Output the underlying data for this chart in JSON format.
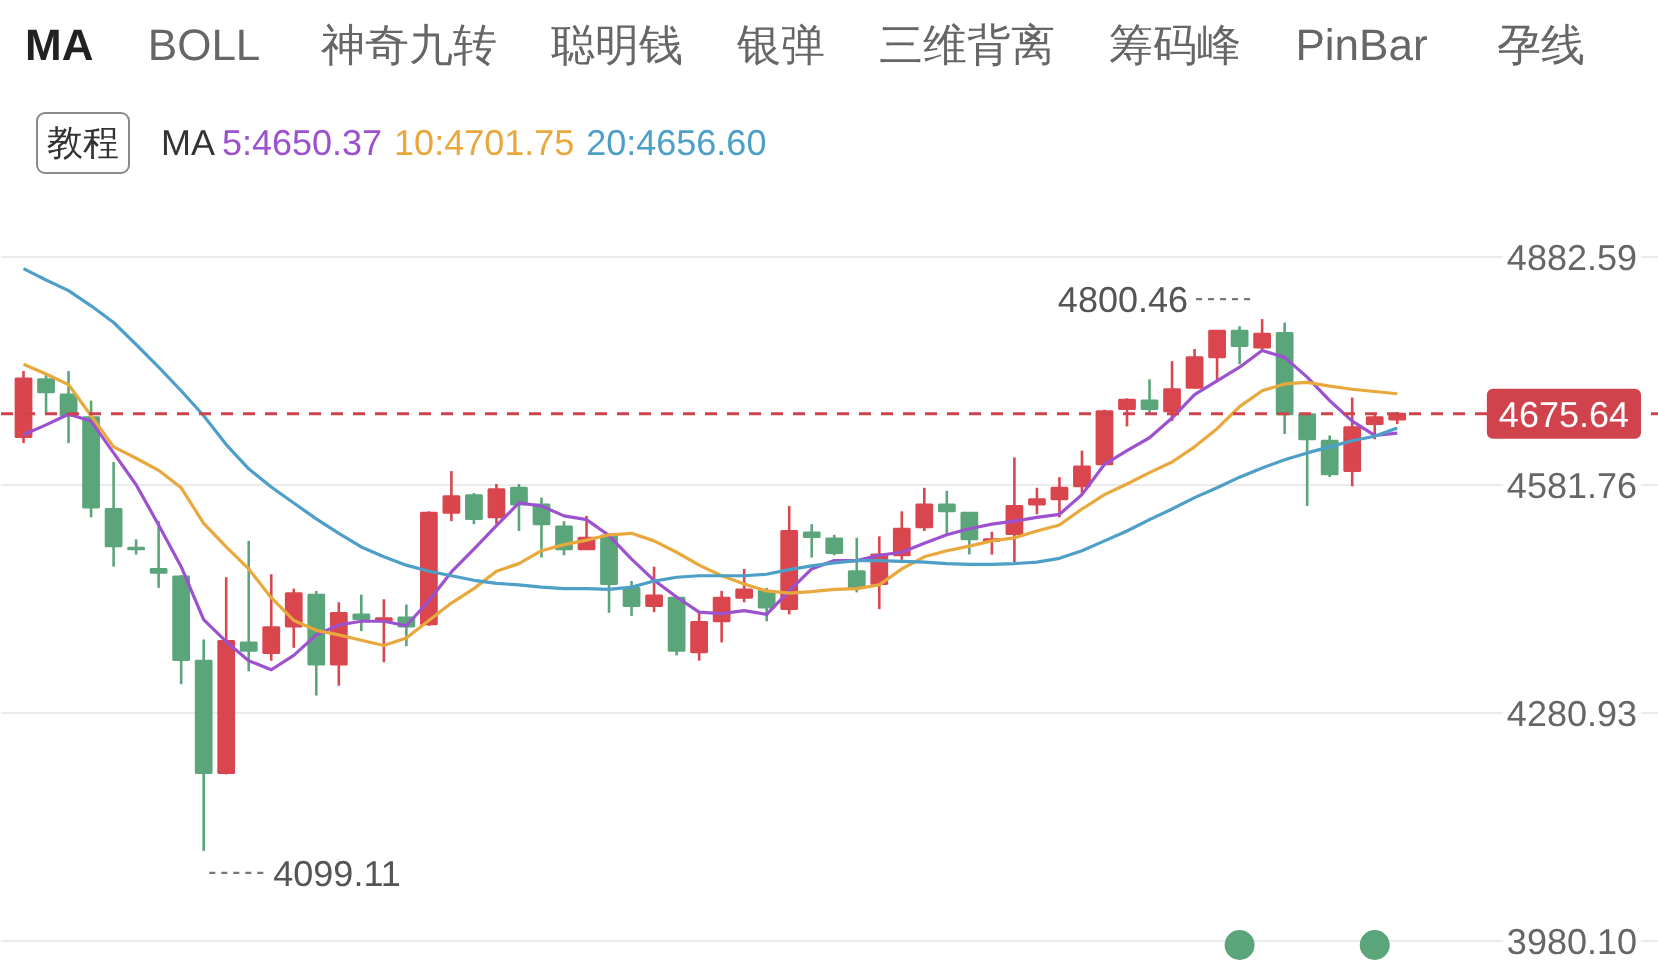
{
  "chart_data": {
    "type": "candlestick",
    "categories": [
      null,
      null,
      null,
      null,
      null,
      null,
      null,
      null,
      null,
      null,
      null,
      null,
      null,
      null,
      null,
      null,
      null,
      null,
      null,
      null,
      null,
      null,
      null,
      null,
      null,
      null,
      null,
      null,
      null,
      null,
      null,
      null,
      null,
      null,
      null,
      null,
      null,
      null,
      null,
      null,
      null,
      null,
      null,
      null,
      null,
      null,
      null,
      null,
      null,
      null,
      null,
      null,
      null,
      null,
      null,
      null,
      null,
      null,
      null,
      null,
      null,
      null
    ],
    "ohlc": [
      [
        4645,
        4732,
        4637,
        4722
      ],
      [
        4721,
        4728,
        4675,
        4704
      ],
      [
        4701,
        4732,
        4637,
        4673
      ],
      [
        4671,
        4693,
        4539,
        4552
      ],
      [
        4550,
        4612,
        4474,
        4501
      ],
      [
        4499,
        4510,
        4490,
        4497
      ],
      [
        4471,
        4534,
        4446,
        4466
      ],
      [
        4461,
        4463,
        4319,
        4351
      ],
      [
        4350,
        4378,
        4099.11,
        4202
      ],
      [
        4202,
        4460,
        4200,
        4376
      ],
      [
        4374,
        4508,
        4336,
        4363
      ],
      [
        4360,
        4464,
        4350,
        4394
      ],
      [
        4395,
        4445,
        4367,
        4439
      ],
      [
        4437,
        4442,
        4304,
        4345
      ],
      [
        4345,
        4427,
        4317,
        4413
      ],
      [
        4411,
        4437,
        4389,
        4405
      ],
      [
        4402,
        4431,
        4348,
        4406
      ],
      [
        4407,
        4424,
        4369,
        4395
      ],
      [
        4398,
        4547,
        4396,
        4545
      ],
      [
        4545,
        4600,
        4534,
        4567
      ],
      [
        4568,
        4571,
        4530,
        4537
      ],
      [
        4539,
        4583,
        4530,
        4576
      ],
      [
        4578,
        4583,
        4521,
        4556
      ],
      [
        4556,
        4565,
        4486,
        4530
      ],
      [
        4527,
        4534,
        4489,
        4497
      ],
      [
        4497,
        4541,
        4496,
        4512
      ],
      [
        4515,
        4516,
        4413,
        4451
      ],
      [
        4446,
        4455,
        4409,
        4422
      ],
      [
        4422,
        4474,
        4414,
        4436
      ],
      [
        4433,
        4434,
        4357,
        4363
      ],
      [
        4361,
        4413,
        4350,
        4401
      ],
      [
        4402,
        4442,
        4374,
        4433
      ],
      [
        4433,
        4471,
        4427,
        4444
      ],
      [
        4442,
        4446,
        4402,
        4420
      ],
      [
        4418,
        4554,
        4411,
        4521
      ],
      [
        4519,
        4530,
        4486,
        4513
      ],
      [
        4511,
        4516,
        4489,
        4492
      ],
      [
        4468,
        4512,
        4440,
        4446
      ],
      [
        4451,
        4514,
        4418,
        4490
      ],
      [
        4489,
        4547,
        4483,
        4524
      ],
      [
        4526,
        4578,
        4521,
        4556
      ],
      [
        4556,
        4574,
        4515,
        4547
      ],
      [
        4545,
        4546,
        4490,
        4510
      ],
      [
        4508,
        4520,
        4490,
        4510
      ],
      [
        4517,
        4618,
        4480,
        4554
      ],
      [
        4556,
        4578,
        4543,
        4563
      ],
      [
        4563,
        4592,
        4539,
        4578
      ],
      [
        4580,
        4627,
        4569,
        4606
      ],
      [
        4609,
        4681,
        4607,
        4679
      ],
      [
        4682,
        4696,
        4659,
        4694
      ],
      [
        4693,
        4721,
        4675,
        4682
      ],
      [
        4679,
        4745,
        4666,
        4708
      ],
      [
        4710,
        4761,
        4709,
        4750
      ],
      [
        4750,
        4786,
        4719,
        4785
      ],
      [
        4785,
        4791,
        4741,
        4765
      ],
      [
        4763,
        4800.46,
        4759,
        4781
      ],
      [
        4782,
        4796,
        4649,
        4675
      ],
      [
        4675,
        4676,
        4554,
        4642
      ],
      [
        4640,
        4647,
        4592,
        4596
      ],
      [
        4600,
        4697,
        4580,
        4658
      ],
      [
        4662,
        4677,
        4642,
        4671
      ],
      [
        4668,
        4678,
        4662,
        4675.64
      ]
    ],
    "colors": [
      "#d9464e",
      "#5ba57a",
      "#5ba57a",
      "#5ba57a",
      "#5ba57a",
      "#5ba57a",
      "#5ba57a",
      "#5ba57a",
      "#5ba57a",
      "#d9464e",
      "#5ba57a",
      "#d9464e",
      "#d9464e",
      "#5ba57a",
      "#d9464e",
      "#5ba57a",
      "#d9464e",
      "#5ba57a",
      "#d9464e",
      "#d9464e",
      "#5ba57a",
      "#d9464e",
      "#5ba57a",
      "#5ba57a",
      "#5ba57a",
      "#d9464e",
      "#5ba57a",
      "#5ba57a",
      "#d9464e",
      "#5ba57a",
      "#d9464e",
      "#d9464e",
      "#d9464e",
      "#5ba57a",
      "#d9464e",
      "#5ba57a",
      "#5ba57a",
      "#5ba57a",
      "#d9464e",
      "#d9464e",
      "#d9464e",
      "#5ba57a",
      "#5ba57a",
      "#d9464e",
      "#d9464e",
      "#d9464e",
      "#d9464e",
      "#d9464e",
      "#d9464e",
      "#d9464e",
      "#5ba57a",
      "#d9464e",
      "#d9464e",
      "#d9464e",
      "#5ba57a",
      "#d9464e",
      "#5ba57a",
      "#5ba57a",
      "#5ba57a",
      "#d9464e",
      "#d9464e",
      "#d9464e"
    ],
    "series": [
      {
        "name": "5:4650.37",
        "type": "line",
        "color": "#9c52cf",
        "values": [
          4648,
          4661,
          4675,
          4666,
          4624,
          4582,
          4529,
          4474,
          4404,
          4375,
          4350,
          4338,
          4357,
          4384,
          4397,
          4402,
          4402,
          4396,
          4429,
          4467,
          4497,
          4528,
          4558,
          4554,
          4541,
          4536,
          4515,
          4484,
          4456,
          4434,
          4414,
          4412,
          4416,
          4411,
          4442,
          4471,
          4482,
          4482,
          4489,
          4493,
          4505,
          4516,
          4524,
          4530,
          4534,
          4539,
          4543,
          4569,
          4609,
          4627,
          4644,
          4670,
          4701,
          4719,
          4737,
          4759,
          4750,
          4724,
          4693,
          4666,
          4647,
          4650
        ]
      },
      {
        "name": "10:4701.75",
        "type": "line",
        "color": "#e8a83c",
        "values": [
          4741,
          4728,
          4714,
          4673,
          4632,
          4617,
          4601,
          4578,
          4531,
          4500,
          4471,
          4433,
          4403,
          4390,
          4384,
          4377,
          4370,
          4380,
          4403,
          4426,
          4445,
          4468,
          4478,
          4495,
          4503,
          4509,
          4516,
          4518,
          4508,
          4493,
          4476,
          4462,
          4451,
          4442,
          4439,
          4441,
          4444,
          4445,
          4450,
          4471,
          4487,
          4495,
          4501,
          4508,
          4512,
          4521,
          4529,
          4550,
          4569,
          4583,
          4598,
          4612,
          4632,
          4656,
          4685,
          4706,
          4715,
          4717,
          4712,
          4708,
          4705,
          4702
        ]
      },
      {
        "name": "20:4656.60",
        "type": "line",
        "color": "#4d9fc8",
        "values": [
          4867,
          4852,
          4838,
          4818,
          4796,
          4767,
          4737,
          4706,
          4673,
          4635,
          4603,
          4579,
          4558,
          4537,
          4518,
          4500,
          4487,
          4476,
          4468,
          4462,
          4456,
          4452,
          4450,
          4447,
          4445,
          4445,
          4444,
          4447,
          4455,
          4460,
          4462,
          4462,
          4462,
          4464,
          4470,
          4475,
          4479,
          4482,
          4482,
          4481,
          4480,
          4478,
          4477,
          4477,
          4478,
          4480,
          4485,
          4495,
          4508,
          4521,
          4536,
          4550,
          4565,
          4578,
          4592,
          4604,
          4615,
          4624,
          4632,
          4640,
          4646,
          4657
        ]
      },
      {
        "type": "scatter",
        "color": "#5ba57a",
        "marker": "circle",
        "values": [
          null,
          null,
          null,
          null,
          null,
          null,
          null,
          null,
          null,
          null,
          null,
          null,
          null,
          null,
          null,
          null,
          null,
          null,
          null,
          null,
          null,
          null,
          null,
          null,
          null,
          null,
          null,
          null,
          null,
          null,
          null,
          null,
          null,
          null,
          null,
          null,
          null,
          null,
          null,
          null,
          null,
          null,
          null,
          null,
          null,
          null,
          null,
          null,
          null,
          null,
          null,
          null,
          null,
          null,
          3975,
          null,
          null,
          null,
          null,
          null,
          3975,
          null
        ]
      }
    ],
    "legend_title": "MA",
    "ylim": [
      3946,
      5220
    ],
    "yticks": [
      {
        "value": 3980.1,
        "label": "3980.10"
      },
      4280.93,
      4581.76,
      4882.59
    ],
    "tick_labels": "y",
    "grid": "y",
    "ref_lines": [
      {
        "axis": "y",
        "value": 4675.64,
        "label": "4675.64",
        "color": "#d0434c",
        "line_style": "dashed"
      }
    ],
    "annotations": [
      "4800.46",
      "4099.11",
      "MA",
      "BOLL",
      "神奇九转",
      "聪明钱",
      "银弹",
      "三维背离",
      "筹码峰",
      "PinBar",
      "孕线",
      "教程"
    ]
  }
}
